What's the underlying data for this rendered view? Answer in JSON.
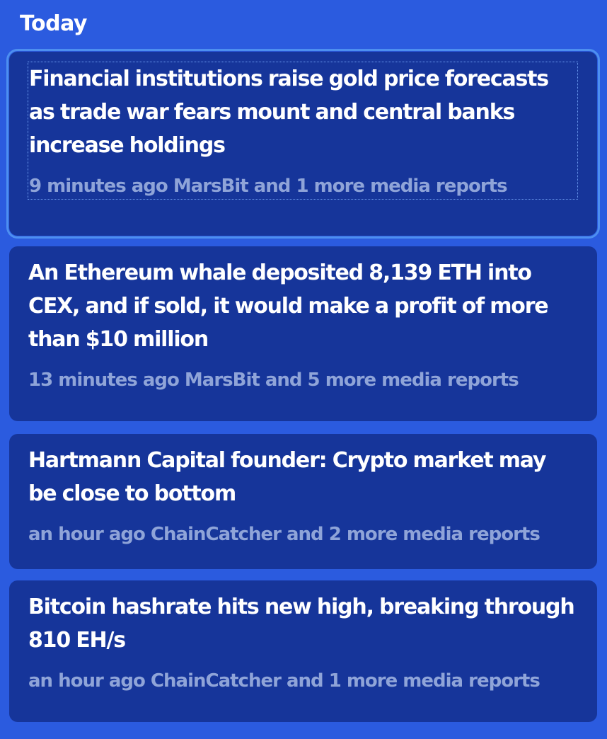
{
  "section": {
    "title": "Today"
  },
  "news": [
    {
      "headline": "Financial institutions raise gold price forecasts as trade war fears mount and central banks increase holdings",
      "meta": "9 minutes ago MarsBit and 1 more media reports"
    },
    {
      "headline": "An Ethereum whale deposited 8,139 ETH into CEX, and if sold, it would make a profit of more than $10 million",
      "meta": "13 minutes ago MarsBit and 5 more media reports"
    },
    {
      "headline": "Hartmann Capital founder: Crypto market may be close to bottom",
      "meta": "an hour ago ChainCatcher and 2 more media reports"
    },
    {
      "headline": "Bitcoin hashrate hits new high, breaking through 810 EH/s",
      "meta": "an hour ago ChainCatcher and 1 more media reports"
    }
  ],
  "colors": {
    "background": "#2b5bdf",
    "card": "#16359a",
    "headline": "#ffffff",
    "meta": "#8fa4d8",
    "focus_ring": "#4d8ff0"
  }
}
